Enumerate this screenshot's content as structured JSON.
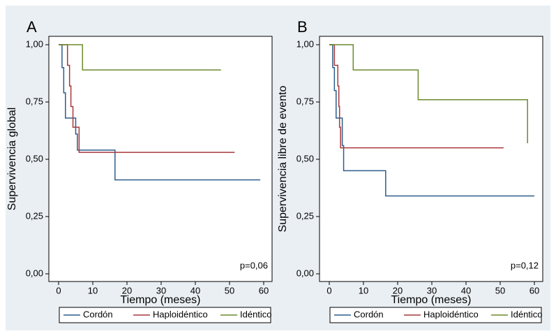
{
  "chart_data": [
    {
      "type": "step",
      "panel": "A",
      "ylabel": "Supervivencia global",
      "xlabel": "Tiempo (meses)",
      "annotation": "p=0,06",
      "xlim": [
        0,
        60
      ],
      "xticks": [
        0,
        10,
        20,
        30,
        40,
        50,
        60
      ],
      "ylim": [
        0,
        1
      ],
      "yticks": [
        {
          "value": 0,
          "label": "0,00"
        },
        {
          "value": 0.25,
          "label": "0,25"
        },
        {
          "value": 0.5,
          "label": "0,50"
        },
        {
          "value": 0.75,
          "label": "0,75"
        },
        {
          "value": 1,
          "label": "1,00"
        }
      ],
      "grid": false,
      "legend": "bottom",
      "series": [
        {
          "name": "Cordón",
          "color": "#2b5d8c",
          "x": [
            0,
            1,
            1.5,
            2,
            5,
            5.5,
            16.5,
            59
          ],
          "values": [
            1,
            0.9,
            0.79,
            0.68,
            0.61,
            0.54,
            0.41,
            0.41
          ]
        },
        {
          "name": "Haploidéntico",
          "color": "#a8383b",
          "x": [
            0,
            2.6,
            3.2,
            3.6,
            4.2,
            6,
            51.5
          ],
          "values": [
            1,
            0.91,
            0.82,
            0.73,
            0.64,
            0.53,
            0.53
          ]
        },
        {
          "name": "Idéntico",
          "color": "#6b8a2c",
          "x": [
            0,
            7,
            47.5
          ],
          "values": [
            1,
            0.89,
            0.89
          ]
        }
      ]
    },
    {
      "type": "step",
      "panel": "B",
      "ylabel": "Supervivencia libre de evento",
      "xlabel": "Tiempo (meses)",
      "annotation": "p=0,12",
      "xlim": [
        0,
        60
      ],
      "xticks": [
        0,
        10,
        20,
        30,
        40,
        50,
        60
      ],
      "ylim": [
        0,
        1
      ],
      "yticks": [
        {
          "value": 0,
          "label": "0,00"
        },
        {
          "value": 0.25,
          "label": "0,25"
        },
        {
          "value": 0.5,
          "label": "0,50"
        },
        {
          "value": 0.75,
          "label": "0,75"
        },
        {
          "value": 1,
          "label": "1,00"
        }
      ],
      "grid": false,
      "legend": "bottom",
      "series": [
        {
          "name": "Cordón",
          "color": "#2b5d8c",
          "x": [
            0,
            1,
            1.5,
            2,
            3.8,
            4.2,
            16.5,
            60
          ],
          "values": [
            1,
            0.9,
            0.8,
            0.68,
            0.56,
            0.45,
            0.34,
            0.34
          ]
        },
        {
          "name": "Haploidéntico",
          "color": "#a8383b",
          "x": [
            0,
            1.5,
            2.5,
            2.8,
            3,
            3.3,
            51
          ],
          "values": [
            1,
            0.91,
            0.82,
            0.73,
            0.64,
            0.55,
            0.55
          ]
        },
        {
          "name": "Idéntico",
          "color": "#6b8a2c",
          "x": [
            0,
            7,
            26,
            58
          ],
          "values": [
            1,
            0.89,
            0.76,
            0.57
          ]
        }
      ]
    }
  ]
}
